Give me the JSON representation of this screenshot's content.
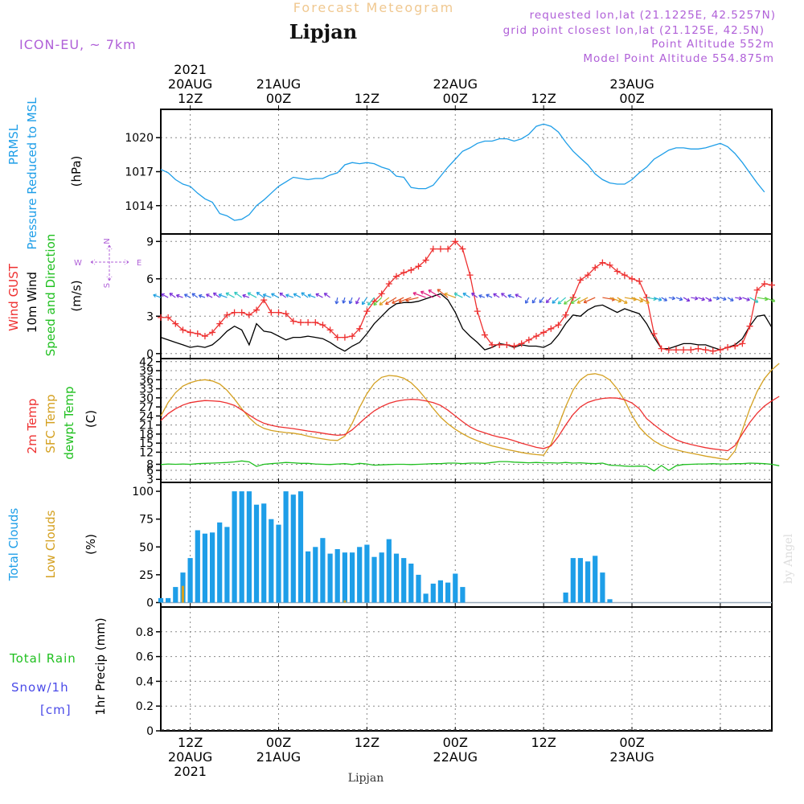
{
  "header": {
    "top_title": "Forecast Meteogram",
    "location": "Lipjan",
    "model": "ICON-EU, ~ 7km",
    "requested": "requested lon,lat (21.1225E, 42.5257N)",
    "grid_point": "grid point closest lon,lat (21.125E, 42.5N)",
    "point_alt": "Point Altitude 552m",
    "model_alt": "Model Point Altitude 554.875m",
    "bottom_location": "Lipjan",
    "watermark": "by Angel"
  },
  "colors": {
    "pressure": "#1e9ee8",
    "gust": "#ee3030",
    "wind": "#000000",
    "t2m": "#ee3030",
    "sfc": "#d4a020",
    "dew": "#20c020",
    "cloud_total": "#1e9ee8",
    "cloud_low": "#d4a020",
    "rain": "#20c020",
    "snow": "#4a4ae8",
    "header_purple": "#b060d8",
    "title_orange": "#f0c890"
  },
  "time_axis": {
    "top_labels": [
      {
        "h": 12,
        "lines": [
          "2021",
          "20AUG",
          "12Z"
        ]
      },
      {
        "h": 24,
        "lines": [
          "21AUG",
          "00Z"
        ]
      },
      {
        "h": 36,
        "lines": [
          "12Z"
        ]
      },
      {
        "h": 48,
        "lines": [
          "22AUG",
          "00Z"
        ]
      },
      {
        "h": 60,
        "lines": [
          "12Z"
        ]
      },
      {
        "h": 72,
        "lines": [
          "23AUG",
          "00Z"
        ]
      }
    ],
    "bottom_labels": [
      {
        "h": 12,
        "lines": [
          "12Z",
          "20AUG",
          "2021"
        ]
      },
      {
        "h": 24,
        "lines": [
          "00Z",
          "21AUG"
        ]
      },
      {
        "h": 36,
        "lines": [
          "12Z"
        ]
      },
      {
        "h": 48,
        "lines": [
          "00Z",
          "22AUG"
        ]
      },
      {
        "h": 60,
        "lines": [
          "12Z"
        ]
      },
      {
        "h": 72,
        "lines": [
          "00Z",
          "23AUG"
        ]
      }
    ]
  },
  "chart_data": [
    {
      "type": "line",
      "panel": "pressure",
      "ylabel": [
        "PRMSL",
        "Pressure Reduced to MSL"
      ],
      "unit": "(hPa)",
      "ylim": [
        1011.5,
        1022.5
      ],
      "yticks": [
        1014,
        1017,
        1020
      ],
      "x_hours_start": 8,
      "x_hours_step": 1,
      "series": [
        {
          "values": [
            1017.2,
            1016.9,
            1016.3,
            1015.9,
            1015.7,
            1015.1,
            1014.6,
            1014.3,
            1013.3,
            1013.1,
            1012.7,
            1012.8,
            1013.2,
            1014.0,
            1014.5,
            1015.1,
            1015.7,
            1016.1,
            1016.5,
            1016.4,
            1016.3,
            1016.4,
            1016.4,
            1016.7,
            1016.9,
            1017.6,
            1017.8,
            1017.7,
            1017.8,
            1017.7,
            1017.4,
            1017.2,
            1016.6,
            1016.5,
            1015.6,
            1015.5,
            1015.5,
            1015.8,
            1016.6,
            1017.4,
            1018.1,
            1018.8,
            1019.1,
            1019.5,
            1019.7,
            1019.7,
            1019.9,
            1019.9,
            1019.7,
            1019.9,
            1020.3,
            1021.0,
            1021.2,
            1021.0,
            1020.5,
            1019.6,
            1018.8,
            1018.2,
            1017.6,
            1016.8,
            1016.3,
            1016.0,
            1015.9,
            1015.9,
            1016.3,
            1016.9,
            1017.4,
            1018.1,
            1018.5,
            1018.9,
            1019.1,
            1019.1,
            1019.0,
            1019.0,
            1019.1,
            1019.3,
            1019.5,
            1019.2,
            1018.6,
            1017.8,
            1016.9,
            1016.0,
            1015.2
          ]
        }
      ]
    },
    {
      "type": "line",
      "panel": "wind",
      "ylabel": [
        "Wind GUST",
        "10m Wind",
        "Speed and Direction"
      ],
      "unit": "(m/s)",
      "ylim": [
        -0.4,
        9.6
      ],
      "yticks": [
        0,
        3,
        6,
        9
      ],
      "compass": [
        "N",
        "W",
        "E",
        "S"
      ],
      "x_hours_start": 8,
      "x_hours_step": 1,
      "series": [
        {
          "name": "Wind GUST",
          "values": [
            2.9,
            2.9,
            2.4,
            1.9,
            1.7,
            1.6,
            1.4,
            1.7,
            2.4,
            3.1,
            3.3,
            3.3,
            3.1,
            3.5,
            4.3,
            3.3,
            3.3,
            3.2,
            2.6,
            2.5,
            2.5,
            2.5,
            2.3,
            1.9,
            1.3,
            1.3,
            1.4,
            2.0,
            3.4,
            4.2,
            4.8,
            5.6,
            6.2,
            6.5,
            6.7,
            7.0,
            7.5,
            8.4,
            8.4,
            8.4,
            9.0,
            8.4,
            6.3,
            3.4,
            1.5,
            0.7,
            0.7,
            0.7,
            0.6,
            0.8,
            1.1,
            1.4,
            1.7,
            2.0,
            2.3,
            3.1,
            4.5,
            5.9,
            6.3,
            6.9,
            7.3,
            7.1,
            6.6,
            6.3,
            6.0,
            5.8,
            4.5,
            1.6,
            0.4,
            0.3,
            0.3,
            0.3,
            0.3,
            0.4,
            0.3,
            0.2,
            0.3,
            0.5,
            0.6,
            0.8,
            2.2,
            5.1,
            5.6,
            5.5
          ]
        },
        {
          "name": "10m Wind",
          "values": [
            1.3,
            1.1,
            0.9,
            0.7,
            0.5,
            0.6,
            0.5,
            0.7,
            1.2,
            1.8,
            2.2,
            1.9,
            0.7,
            2.4,
            1.8,
            1.7,
            1.4,
            1.1,
            1.3,
            1.3,
            1.4,
            1.3,
            1.2,
            0.9,
            0.5,
            0.2,
            0.6,
            0.9,
            1.6,
            2.4,
            3.0,
            3.6,
            4.0,
            4.1,
            4.1,
            4.2,
            4.4,
            4.6,
            4.8,
            4.3,
            3.3,
            2.0,
            1.4,
            0.9,
            0.3,
            0.5,
            0.8,
            0.7,
            0.5,
            0.7,
            0.6,
            0.6,
            0.5,
            0.8,
            1.5,
            2.4,
            3.1,
            3.0,
            3.5,
            3.8,
            3.9,
            3.6,
            3.3,
            3.6,
            3.4,
            3.2,
            2.4,
            1.3,
            0.4,
            0.4,
            0.6,
            0.8,
            0.8,
            0.7,
            0.7,
            0.5,
            0.3,
            0.5,
            0.7,
            1.2,
            2.2,
            3.0,
            3.1,
            2.1
          ]
        }
      ]
    },
    {
      "type": "line",
      "panel": "temperature",
      "ylabel": [
        "2m Temp",
        "SFC Temp",
        "dewpt Temp"
      ],
      "unit": "(C)",
      "ylim": [
        2,
        43
      ],
      "yticks": [
        3,
        6,
        8,
        12,
        15,
        18,
        21,
        24,
        27,
        30,
        33,
        36,
        39,
        42
      ],
      "tick_labels": [
        "3",
        "6",
        "8",
        "12",
        "15",
        "18",
        "21",
        "24",
        "27",
        "30",
        "33",
        "36",
        "39",
        "42"
      ],
      "x_hours_start": 8,
      "x_hours_step": 1,
      "series": [
        {
          "name": "2m Temp",
          "values": [
            22.5,
            24.8,
            26.4,
            27.6,
            28.4,
            28.8,
            29.1,
            29.0,
            28.8,
            28.3,
            27.5,
            26.0,
            24.3,
            22.8,
            21.6,
            20.9,
            20.4,
            20.1,
            19.8,
            19.4,
            19.0,
            18.7,
            18.3,
            17.9,
            17.6,
            17.8,
            19.4,
            21.6,
            23.8,
            25.7,
            27.1,
            28.2,
            28.9,
            29.3,
            29.5,
            29.4,
            29.0,
            28.4,
            27.5,
            25.9,
            24.0,
            22.1,
            20.4,
            19.2,
            18.4,
            17.6,
            17.0,
            16.5,
            15.8,
            15.0,
            14.3,
            13.6,
            13.2,
            14.1,
            17.2,
            21.0,
            24.5,
            27.0,
            28.5,
            29.3,
            29.8,
            30.0,
            29.9,
            29.4,
            28.3,
            26.4,
            23.1,
            21.1,
            19.2,
            17.6,
            16.1,
            15.2,
            14.6,
            14.0,
            13.5,
            13.1,
            12.8,
            12.5,
            14.2,
            18.1,
            21.8,
            24.9,
            27.3,
            29.0,
            30.5
          ]
        },
        {
          "name": "SFC Temp",
          "values": [
            24.0,
            28.5,
            31.7,
            33.9,
            35.0,
            35.7,
            36.0,
            35.6,
            34.6,
            32.5,
            29.6,
            26.4,
            23.4,
            21.2,
            19.9,
            19.2,
            18.8,
            18.5,
            18.3,
            17.9,
            17.3,
            16.8,
            16.4,
            16.0,
            15.9,
            17.3,
            21.6,
            26.8,
            31.4,
            34.8,
            36.8,
            37.4,
            37.2,
            36.5,
            35.0,
            32.6,
            29.7,
            26.5,
            23.6,
            21.4,
            19.6,
            18.1,
            16.8,
            15.8,
            14.9,
            14.1,
            13.5,
            12.9,
            12.4,
            11.9,
            11.5,
            11.2,
            11.0,
            14.6,
            20.7,
            27.1,
            32.6,
            36.0,
            37.7,
            38.0,
            37.4,
            35.9,
            33.0,
            29.1,
            24.2,
            20.3,
            17.7,
            15.7,
            14.3,
            13.4,
            12.8,
            12.2,
            11.7,
            11.2,
            10.7,
            10.3,
            9.9,
            9.5,
            12.5,
            19.4,
            26.3,
            32.1,
            36.4,
            39.3,
            41.4
          ]
        },
        {
          "name": "dewpt Temp",
          "values": [
            7.9,
            8.1,
            8.0,
            8.1,
            8.0,
            8.2,
            8.3,
            8.4,
            8.5,
            8.6,
            8.8,
            9.1,
            8.8,
            7.3,
            8.0,
            8.2,
            8.4,
            8.6,
            8.5,
            8.3,
            8.3,
            8.1,
            8.0,
            7.9,
            8.1,
            8.2,
            7.9,
            8.3,
            8.1,
            7.7,
            7.8,
            7.9,
            8.0,
            8.0,
            7.9,
            8.0,
            8.1,
            8.2,
            8.2,
            8.4,
            8.4,
            8.2,
            8.4,
            8.4,
            8.3,
            8.6,
            8.9,
            8.9,
            8.7,
            8.6,
            8.5,
            8.6,
            8.5,
            8.5,
            8.4,
            8.6,
            8.4,
            8.5,
            8.3,
            8.2,
            8.4,
            7.7,
            7.6,
            7.4,
            7.3,
            7.4,
            7.3,
            5.8,
            7.6,
            6.0,
            7.5,
            7.9,
            8.0,
            8.1,
            8.1,
            8.2,
            8.1,
            8.1,
            8.2,
            8.2,
            8.4,
            8.3,
            8.2,
            8.0,
            7.5
          ]
        }
      ]
    },
    {
      "type": "bar",
      "panel": "clouds",
      "ylabel": [
        "Total Clouds",
        "Low Clouds"
      ],
      "unit": "(%)",
      "ylim": [
        -4,
        108
      ],
      "yticks": [
        0,
        25,
        50,
        75,
        100
      ],
      "x_hours_start": 8,
      "x_hours_step": 1,
      "series": [
        {
          "name": "Total Clouds",
          "values": [
            4,
            4,
            14,
            27,
            40,
            65,
            62,
            63,
            72,
            68,
            100,
            100,
            100,
            88,
            89,
            75,
            70,
            100,
            97,
            100,
            46,
            50,
            58,
            44,
            48,
            45,
            45,
            50,
            52,
            41,
            45,
            57,
            44,
            40,
            35,
            25,
            8,
            17,
            20,
            18,
            26,
            14,
            0,
            0,
            0,
            0,
            0,
            0,
            0,
            0,
            0,
            0,
            0,
            0,
            0,
            9,
            40,
            40,
            37,
            42,
            27,
            3,
            0,
            0,
            0,
            0,
            0,
            0,
            0,
            0,
            0,
            0,
            0,
            0,
            0,
            0,
            0,
            0,
            0,
            0,
            0,
            0,
            0
          ]
        },
        {
          "name": "Low Clouds",
          "values": [
            0,
            0,
            0,
            15,
            0,
            0,
            0,
            0,
            0,
            0,
            0,
            0,
            0,
            0,
            0,
            0,
            0,
            0,
            0,
            0,
            0,
            0,
            0,
            0,
            0,
            2,
            0,
            0,
            0,
            0,
            0,
            0,
            0,
            0,
            0,
            0,
            0,
            0,
            0,
            0,
            0,
            0,
            0,
            0,
            0,
            0,
            0,
            0,
            0,
            0,
            0,
            0,
            0,
            0,
            0,
            0,
            0,
            0,
            0,
            0,
            0,
            0,
            0,
            0,
            0,
            0,
            0,
            0,
            0,
            0,
            0,
            0,
            0,
            0,
            0,
            0,
            0,
            0,
            0,
            0,
            0,
            0,
            0
          ]
        }
      ]
    },
    {
      "type": "bar",
      "panel": "precip",
      "ylabel": "1hr Precip (mm)",
      "legend": {
        "rain": "Total  Rain",
        "snow": "Snow/1h",
        "snow_unit": "[cm]"
      },
      "ylim": [
        0,
        1
      ],
      "yticks": [
        0,
        0.2,
        0.4,
        0.6,
        0.8
      ],
      "tick_labels": [
        "0",
        "0.2",
        "0.4",
        "0.6",
        "0.8"
      ],
      "series": [
        {
          "name": "Total Rain",
          "values": []
        },
        {
          "name": "Snow/1h",
          "values": []
        }
      ]
    }
  ]
}
